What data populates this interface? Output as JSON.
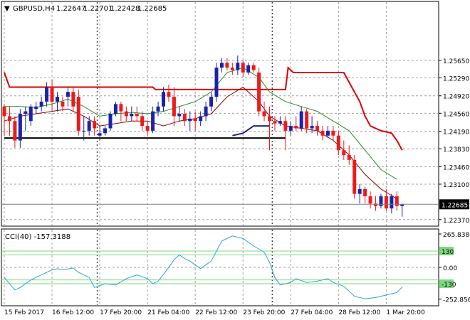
{
  "chart_data": [
    {
      "type": "candlestick",
      "header": {
        "symbol": "GBPUSD,H4",
        "open": "1.22647",
        "high": "1.22701",
        "low": "1.22428",
        "close": "1.22685"
      },
      "ylim": [
        1.2225,
        1.2685
      ],
      "y_ticks": [
        "1.25650",
        "1.25290",
        "1.24920",
        "1.24560",
        "1.24190",
        "1.23830",
        "1.23460",
        "1.23100",
        "1.22370"
      ],
      "current_price": "1.22685",
      "x_ticks": [
        "15 Feb 2017",
        "16 Feb 12:00",
        "17 Feb 20:00",
        "21 Feb 04:00",
        "22 Feb 12:00",
        "23 Feb 20:00",
        "27 Feb 04:00",
        "28 Feb 12:00",
        "1 Mar 20:00"
      ],
      "colors": {
        "bull": "#1a23a8",
        "bear": "#ee1a1a",
        "ma_fast": "#2a8a2a",
        "ma_slow": "#8b0000",
        "upper_band": "#dd0000",
        "lower_band": "#000000",
        "lower_band_alt": "#1a237e",
        "grid": "#a0a0a0"
      },
      "candles": [
        [
          1.247,
          1.2475,
          1.241,
          1.245
        ],
        [
          1.245,
          1.247,
          1.241,
          1.244
        ],
        [
          1.244,
          1.245,
          1.2385,
          1.24
        ],
        [
          1.24,
          1.2465,
          1.2385,
          1.2455
        ],
        [
          1.2455,
          1.247,
          1.242,
          1.246
        ],
        [
          1.244,
          1.2475,
          1.243,
          1.247
        ],
        [
          1.2465,
          1.248,
          1.2455,
          1.247
        ],
        [
          1.247,
          1.249,
          1.246,
          1.248
        ],
        [
          1.248,
          1.252,
          1.247,
          1.251
        ],
        [
          1.251,
          1.2525,
          1.246,
          1.248
        ],
        [
          1.248,
          1.25,
          1.246,
          1.249
        ],
        [
          1.248,
          1.249,
          1.246,
          1.247
        ],
        [
          1.249,
          1.251,
          1.247,
          1.25
        ],
        [
          1.25,
          1.251,
          1.246,
          1.247
        ],
        [
          1.249,
          1.2505,
          1.241,
          1.242
        ],
        [
          1.242,
          1.245,
          1.24,
          1.242
        ],
        [
          1.242,
          1.245,
          1.241,
          1.244
        ],
        [
          1.244,
          1.245,
          1.241,
          1.2425
        ],
        [
          1.241,
          1.243,
          1.24,
          1.2415
        ],
        [
          1.2415,
          1.243,
          1.241,
          1.2425
        ],
        [
          1.2425,
          1.246,
          1.242,
          1.2455
        ],
        [
          1.2455,
          1.248,
          1.245,
          1.2475
        ],
        [
          1.2475,
          1.248,
          1.244,
          1.246
        ],
        [
          1.246,
          1.247,
          1.244,
          1.245
        ],
        [
          1.245,
          1.247,
          1.244,
          1.2455
        ],
        [
          1.2455,
          1.247,
          1.244,
          1.245
        ],
        [
          1.245,
          1.246,
          1.242,
          1.243
        ],
        [
          1.243,
          1.244,
          1.241,
          1.242
        ],
        [
          1.242,
          1.247,
          1.2415,
          1.246
        ],
        [
          1.246,
          1.248,
          1.245,
          1.247
        ],
        [
          1.247,
          1.251,
          1.246,
          1.25
        ],
        [
          1.25,
          1.2515,
          1.248,
          1.249
        ],
        [
          1.249,
          1.251,
          1.243,
          1.245
        ],
        [
          1.245,
          1.247,
          1.244,
          1.2455
        ],
        [
          1.2455,
          1.2465,
          1.243,
          1.244
        ],
        [
          1.244,
          1.246,
          1.242,
          1.2445
        ],
        [
          1.2445,
          1.246,
          1.242,
          1.244
        ],
        [
          1.244,
          1.246,
          1.243,
          1.245
        ],
        [
          1.245,
          1.248,
          1.244,
          1.247
        ],
        [
          1.247,
          1.25,
          1.246,
          1.249
        ],
        [
          1.249,
          1.256,
          1.248,
          1.255
        ],
        [
          1.255,
          1.257,
          1.254,
          1.256
        ],
        [
          1.256,
          1.257,
          1.2545,
          1.255
        ],
        [
          1.255,
          1.256,
          1.2535,
          1.2545
        ],
        [
          1.2545,
          1.2575,
          1.2535,
          1.256
        ],
        [
          1.256,
          1.2565,
          1.253,
          1.254
        ],
        [
          1.254,
          1.256,
          1.2535,
          1.2555
        ],
        [
          1.2555,
          1.256,
          1.254,
          1.2545
        ],
        [
          1.254,
          1.255,
          1.245,
          1.246
        ],
        [
          1.246,
          1.248,
          1.244,
          1.245
        ],
        [
          1.245,
          1.247,
          1.238,
          1.244
        ],
        [
          1.244,
          1.245,
          1.242,
          1.2435
        ],
        [
          1.2435,
          1.245,
          1.243,
          1.244
        ],
        [
          1.244,
          1.245,
          1.238,
          1.242
        ],
        [
          1.242,
          1.244,
          1.241,
          1.243
        ],
        [
          1.243,
          1.245,
          1.242,
          1.2425
        ],
        [
          1.2425,
          1.247,
          1.242,
          1.246
        ],
        [
          1.246,
          1.2465,
          1.2415,
          1.2425
        ],
        [
          1.2425,
          1.245,
          1.2415,
          1.243
        ],
        [
          1.243,
          1.244,
          1.241,
          1.242
        ],
        [
          1.242,
          1.243,
          1.24,
          1.241
        ],
        [
          1.241,
          1.243,
          1.2405,
          1.242
        ],
        [
          1.242,
          1.243,
          1.24,
          1.241
        ],
        [
          1.241,
          1.242,
          1.237,
          1.238
        ],
        [
          1.238,
          1.24,
          1.236,
          1.237
        ],
        [
          1.237,
          1.239,
          1.235,
          1.236
        ],
        [
          1.236,
          1.237,
          1.228,
          1.229
        ],
        [
          1.229,
          1.231,
          1.227,
          1.23
        ],
        [
          1.23,
          1.2305,
          1.227,
          1.2285
        ],
        [
          1.2285,
          1.2295,
          1.226,
          1.227
        ],
        [
          1.227,
          1.2285,
          1.2255,
          1.2265
        ],
        [
          1.2265,
          1.229,
          1.226,
          1.2285
        ],
        [
          1.2285,
          1.23,
          1.2255,
          1.226
        ],
        [
          1.226,
          1.229,
          1.225,
          1.2285
        ],
        [
          1.2285,
          1.2295,
          1.2255,
          1.2265
        ],
        [
          1.2265,
          1.227,
          1.2243,
          1.2268
        ]
      ],
      "ma_fast": [
        [
          0,
          1.247
        ],
        [
          3,
          1.247
        ],
        [
          6,
          1.2468
        ],
        [
          9,
          1.2475
        ],
        [
          12,
          1.2485
        ],
        [
          15,
          1.247
        ],
        [
          18,
          1.245
        ],
        [
          21,
          1.2455
        ],
        [
          24,
          1.2458
        ],
        [
          27,
          1.2455
        ],
        [
          30,
          1.246
        ],
        [
          33,
          1.247
        ],
        [
          36,
          1.248
        ],
        [
          39,
          1.25
        ],
        [
          42,
          1.254
        ],
        [
          45,
          1.255
        ],
        [
          48,
          1.253
        ],
        [
          50,
          1.25
        ],
        [
          53,
          1.248
        ],
        [
          56,
          1.247
        ],
        [
          59,
          1.246
        ],
        [
          62,
          1.244
        ],
        [
          65,
          1.242
        ],
        [
          68,
          1.238
        ],
        [
          71,
          1.234
        ],
        [
          74,
          1.232
        ]
      ],
      "ma_slow": [
        [
          0,
          1.244
        ],
        [
          3,
          1.245
        ],
        [
          6,
          1.2455
        ],
        [
          9,
          1.246
        ],
        [
          12,
          1.2465
        ],
        [
          15,
          1.245
        ],
        [
          18,
          1.243
        ],
        [
          21,
          1.2435
        ],
        [
          24,
          1.244
        ],
        [
          27,
          1.244
        ],
        [
          30,
          1.243
        ],
        [
          33,
          1.244
        ],
        [
          36,
          1.2445
        ],
        [
          39,
          1.2455
        ],
        [
          42,
          1.249
        ],
        [
          45,
          1.251
        ],
        [
          48,
          1.248
        ],
        [
          50,
          1.245
        ],
        [
          53,
          1.243
        ],
        [
          56,
          1.2425
        ],
        [
          59,
          1.242
        ],
        [
          62,
          1.24
        ],
        [
          65,
          1.237
        ],
        [
          68,
          1.233
        ],
        [
          71,
          1.23
        ],
        [
          74,
          1.228
        ]
      ],
      "upper_band": [
        [
          0,
          1.254
        ],
        [
          1,
          1.251
        ],
        [
          1.5,
          1.251
        ],
        [
          28,
          1.251
        ],
        [
          28.5,
          1.2505
        ],
        [
          42,
          1.2505
        ],
        [
          42.5,
          1.2505
        ],
        [
          53,
          1.2505
        ],
        [
          53.5,
          1.255
        ],
        [
          54.5,
          1.254
        ],
        [
          64,
          1.254
        ],
        [
          66,
          1.25
        ],
        [
          67,
          1.248
        ],
        [
          68,
          1.245
        ],
        [
          69,
          1.243
        ],
        [
          71,
          1.242
        ],
        [
          73,
          1.2415
        ],
        [
          74,
          1.24
        ],
        [
          75,
          1.238
        ]
      ],
      "lower_band": [
        [
          0,
          1.2405
        ],
        [
          28,
          1.2405
        ],
        [
          28.5,
          1.2405
        ],
        [
          41,
          1.2405
        ],
        [
          41.5,
          1.2405
        ],
        [
          53,
          1.2405
        ]
      ],
      "lower_band_alt": [
        [
          43,
          1.241
        ],
        [
          45,
          1.2415
        ],
        [
          47,
          1.243
        ],
        [
          50,
          1.243
        ]
      ]
    },
    {
      "type": "line",
      "title": "CCI(40) -157.3188",
      "ylim": [
        -300,
        300
      ],
      "y_ticks": [
        "265.8386",
        "0.00",
        "-252.8565"
      ],
      "level_labels": [
        "130",
        "-130"
      ],
      "levels": [
        130,
        100,
        -100,
        -130
      ],
      "series": [
        {
          "values": [
            [
              0,
              -80
            ],
            [
              2,
              -180
            ],
            [
              3,
              -160
            ],
            [
              5,
              -100
            ],
            [
              7,
              -60
            ],
            [
              9,
              -20
            ],
            [
              10,
              -10
            ],
            [
              11,
              -20
            ],
            [
              13,
              -5
            ],
            [
              14,
              -40
            ],
            [
              16,
              -80
            ],
            [
              17,
              -160
            ],
            [
              19,
              -130
            ],
            [
              21,
              -140
            ],
            [
              23,
              -90
            ],
            [
              25,
              -60
            ],
            [
              27,
              -90
            ],
            [
              28,
              -130
            ],
            [
              29,
              -110
            ],
            [
              31,
              0
            ],
            [
              32,
              60
            ],
            [
              33,
              100
            ],
            [
              34,
              70
            ],
            [
              35,
              50
            ],
            [
              37,
              -10
            ],
            [
              39,
              50
            ],
            [
              41,
              210
            ],
            [
              43,
              250
            ],
            [
              45,
              230
            ],
            [
              47,
              170
            ],
            [
              49,
              120
            ],
            [
              50,
              40
            ],
            [
              51,
              -80
            ],
            [
              52,
              -140
            ],
            [
              54,
              -120
            ],
            [
              55,
              -90
            ],
            [
              57,
              -120
            ],
            [
              59,
              -110
            ],
            [
              61,
              -90
            ],
            [
              62,
              -120
            ],
            [
              64,
              -150
            ],
            [
              66,
              -230
            ],
            [
              68,
              -250
            ],
            [
              70,
              -240
            ],
            [
              72,
              -220
            ],
            [
              74,
              -200
            ],
            [
              75,
              -157
            ]
          ]
        }
      ]
    }
  ]
}
